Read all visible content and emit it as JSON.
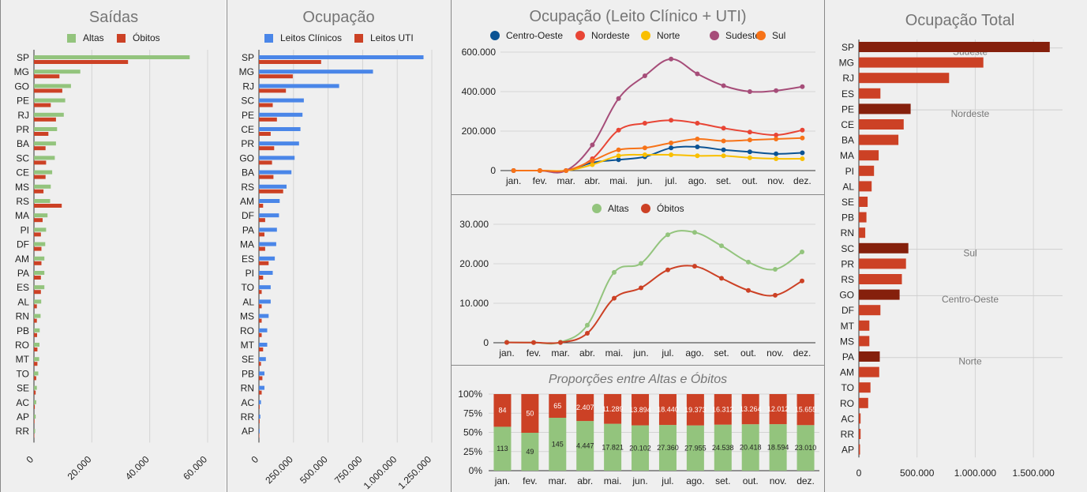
{
  "months": [
    "jan.",
    "fev.",
    "mar.",
    "abr.",
    "mai.",
    "jun.",
    "jul.",
    "ago.",
    "set.",
    "out.",
    "nov.",
    "dez."
  ],
  "colors": {
    "altas": "#93c47d",
    "obitos": "#cc4125",
    "clinicos": "#4a86e8",
    "uti": "#cc4125",
    "centro_oeste": "#0b5394",
    "nordeste": "#e84535",
    "norte": "#f9bf00",
    "sudeste": "#a64d79",
    "sul": "#f77318",
    "total_bar": "#cc4125",
    "total_sum": "#85200c"
  },
  "chart_data": [
    {
      "id": "saidas",
      "type": "bar",
      "orientation": "horizontal",
      "title": "Saídas",
      "categories": [
        "SP",
        "MG",
        "GO",
        "PE",
        "RJ",
        "PR",
        "BA",
        "SC",
        "CE",
        "MS",
        "RS",
        "MA",
        "PI",
        "DF",
        "AM",
        "PA",
        "ES",
        "AL",
        "RN",
        "PB",
        "RO",
        "MT",
        "TO",
        "SE",
        "AC",
        "AP",
        "RR"
      ],
      "series": [
        {
          "name": "Altas",
          "values": [
            53800,
            16000,
            12800,
            10800,
            10300,
            8000,
            7600,
            7200,
            6300,
            5800,
            5600,
            4700,
            4200,
            3900,
            3600,
            3600,
            3600,
            2500,
            2300,
            2000,
            1900,
            1800,
            1500,
            1000,
            800,
            600,
            400
          ]
        },
        {
          "name": "Óbitos",
          "values": [
            32500,
            8800,
            9800,
            5800,
            7600,
            5000,
            4000,
            4200,
            4000,
            3300,
            9600,
            3000,
            2400,
            2600,
            2600,
            2400,
            2400,
            1000,
            1000,
            1100,
            1200,
            1200,
            800,
            600,
            300,
            200,
            100
          ]
        }
      ],
      "xlim": [
        0,
        60000
      ],
      "xticks": [
        "0",
        "20.000",
        "40.000",
        "60.000"
      ],
      "legend": "top"
    },
    {
      "id": "ocupacao",
      "type": "bar",
      "orientation": "horizontal",
      "title": "Ocupação",
      "categories": [
        "SP",
        "MG",
        "RJ",
        "SC",
        "PE",
        "CE",
        "PR",
        "GO",
        "BA",
        "RS",
        "AM",
        "DF",
        "PA",
        "MA",
        "ES",
        "PI",
        "TO",
        "AL",
        "MS",
        "RO",
        "MT",
        "SE",
        "PB",
        "RN",
        "AC",
        "RR",
        "AP"
      ],
      "series": [
        {
          "name": "Leitos Clínicos",
          "values": [
            1190000,
            825000,
            580000,
            325000,
            315000,
            300000,
            290000,
            258000,
            235000,
            200000,
            150000,
            145000,
            130000,
            125000,
            115000,
            100000,
            85000,
            85000,
            70000,
            60000,
            60000,
            50000,
            40000,
            40000,
            15000,
            10000,
            5000
          ]
        },
        {
          "name": "Leitos UTI",
          "values": [
            450000,
            245000,
            195000,
            100000,
            130000,
            85000,
            110000,
            95000,
            105000,
            175000,
            30000,
            45000,
            40000,
            45000,
            70000,
            30000,
            20000,
            20000,
            20000,
            20000,
            30000,
            15000,
            25000,
            20000,
            5000,
            5000,
            3000
          ]
        }
      ],
      "xlim": [
        0,
        1250000
      ],
      "xticks": [
        "0",
        "250.000",
        "500.000",
        "750.000",
        "1.000.000",
        "1.250.000"
      ],
      "legend": "top"
    },
    {
      "id": "ocupacao_regioes",
      "type": "line",
      "title": "Ocupação (Leito Clínico + UTI)",
      "x": [
        "jan.",
        "fev.",
        "mar.",
        "abr.",
        "mai.",
        "jun.",
        "jul.",
        "ago.",
        "set.",
        "out.",
        "nov.",
        "dez."
      ],
      "series": [
        {
          "name": "Centro-Oeste",
          "values": [
            0,
            0,
            0,
            40000,
            55000,
            70000,
            115000,
            120000,
            105000,
            95000,
            85000,
            90000
          ]
        },
        {
          "name": "Nordeste",
          "values": [
            0,
            0,
            0,
            60000,
            205000,
            240000,
            255000,
            240000,
            215000,
            195000,
            180000,
            205000
          ]
        },
        {
          "name": "Norte",
          "values": [
            0,
            0,
            0,
            30000,
            75000,
            80000,
            80000,
            75000,
            75000,
            65000,
            60000,
            60000
          ]
        },
        {
          "name": "Sudeste",
          "values": [
            0,
            0,
            0,
            130000,
            365000,
            480000,
            565000,
            490000,
            430000,
            400000,
            405000,
            425000
          ]
        },
        {
          "name": "Sul",
          "values": [
            0,
            0,
            0,
            50000,
            105000,
            115000,
            140000,
            160000,
            150000,
            155000,
            160000,
            165000
          ]
        }
      ],
      "ylim": [
        0,
        600000
      ],
      "yticks": [
        "0",
        "200.000",
        "400.000",
        "600.000"
      ],
      "legend": "top"
    },
    {
      "id": "altas_obitos_mensal",
      "type": "line",
      "x": [
        "jan.",
        "fev.",
        "mar.",
        "abr.",
        "mai.",
        "jun.",
        "jul.",
        "ago.",
        "set.",
        "out.",
        "nov.",
        "dez."
      ],
      "series": [
        {
          "name": "Altas",
          "values": [
            113,
            49,
            145,
            4447,
            17821,
            20102,
            27360,
            27955,
            24538,
            20418,
            18594,
            23010
          ]
        },
        {
          "name": "Óbitos",
          "values": [
            84,
            50,
            65,
            2407,
            11289,
            13894,
            18440,
            19373,
            16312,
            13264,
            12012,
            15655
          ]
        }
      ],
      "ylim": [
        0,
        30000
      ],
      "yticks": [
        "0",
        "10.000",
        "20.000",
        "30.000"
      ],
      "legend": "top"
    },
    {
      "id": "proporcoes",
      "type": "bar",
      "stacked": "percent",
      "title": "Proporções entre Altas e Óbitos",
      "categories": [
        "jan.",
        "fev.",
        "mar.",
        "abr.",
        "mai.",
        "jun.",
        "jul.",
        "ago.",
        "set.",
        "out.",
        "nov.",
        "dez."
      ],
      "series": [
        {
          "name": "Altas",
          "values": [
            113,
            49,
            145,
            4447,
            17821,
            20102,
            27360,
            27955,
            24538,
            20418,
            18594,
            23010
          ],
          "labels": [
            "113",
            "49",
            "145",
            "4.447",
            "17.821",
            "20.102",
            "27.360",
            "27.955",
            "24.538",
            "20.418",
            "18.594",
            "23.010"
          ]
        },
        {
          "name": "Óbitos",
          "values": [
            84,
            50,
            65,
            2407,
            11289,
            13894,
            18440,
            19373,
            16312,
            13264,
            12012,
            15655
          ],
          "labels": [
            "84",
            "50",
            "65",
            "2.407",
            "11.289",
            "13.894",
            "18.440",
            "19.373",
            "16.312",
            "13.264",
            "12.012",
            "15.655"
          ]
        }
      ],
      "ylim": [
        0,
        1
      ],
      "yticks": [
        "0%",
        "25%",
        "50%",
        "75%",
        "100%"
      ]
    },
    {
      "id": "ocupacao_total",
      "type": "bar",
      "orientation": "horizontal",
      "title": "Ocupação Total",
      "categories": [
        "SP",
        "MG",
        "RJ",
        "ES",
        "PE",
        "CE",
        "BA",
        "MA",
        "PI",
        "AL",
        "SE",
        "PB",
        "RN",
        "SC",
        "PR",
        "RS",
        "GO",
        "DF",
        "MT",
        "MS",
        "PA",
        "AM",
        "TO",
        "RO",
        "AC",
        "RR",
        "AP"
      ],
      "values": [
        1640000,
        1070000,
        775000,
        185000,
        445000,
        385000,
        340000,
        170000,
        130000,
        110000,
        75000,
        65000,
        55000,
        425000,
        405000,
        370000,
        350000,
        185000,
        90000,
        90000,
        180000,
        175000,
        100000,
        80000,
        15000,
        15000,
        10000
      ],
      "is_region_total": [
        true,
        false,
        false,
        false,
        true,
        false,
        false,
        false,
        false,
        false,
        false,
        false,
        false,
        true,
        false,
        false,
        true,
        false,
        false,
        false,
        true,
        false,
        false,
        false,
        false,
        false,
        false
      ],
      "region_labels": [
        {
          "text": "Sudeste",
          "row": 0
        },
        {
          "text": "Nordeste",
          "row": 4
        },
        {
          "text": "Sul",
          "row": 13
        },
        {
          "text": "Centro-Oeste",
          "row": 16
        },
        {
          "text": "Norte",
          "row": 20
        }
      ],
      "xlim": [
        0,
        1750000
      ],
      "xticks": [
        "0",
        "500.000",
        "1.000.000",
        "1.500.000"
      ]
    }
  ]
}
